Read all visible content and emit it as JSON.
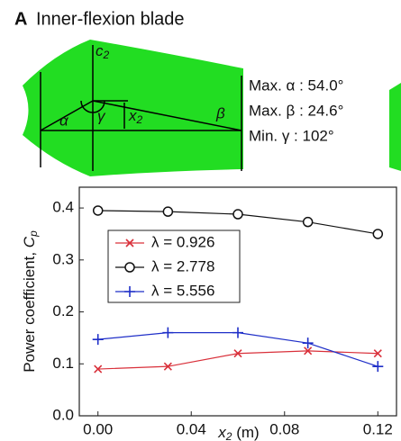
{
  "panel": {
    "letter": "A",
    "title": "Inner-flexion blade"
  },
  "diagram": {
    "c_label": [
      "c",
      "2"
    ],
    "x_label": [
      "x",
      "2"
    ],
    "alpha": "α",
    "beta": "β",
    "gamma": "γ",
    "stats": [
      "Max. α : 54.0°",
      "Max. β : 24.6°",
      "Min. γ : 102°"
    ]
  },
  "chart_data": {
    "type": "line",
    "xlabel": [
      "x",
      "2",
      " (m)"
    ],
    "ylabel": [
      "Power coefficient, ",
      "C",
      "p"
    ],
    "x": [
      0,
      0.03,
      0.06,
      0.09,
      0.12
    ],
    "series": [
      {
        "name": "λ = 0.926",
        "color": "#d9303a",
        "marker": "x",
        "values": [
          0.09,
          0.095,
          0.12,
          0.125,
          0.12
        ]
      },
      {
        "name": "λ = 2.778",
        "color": "#111111",
        "marker": "o",
        "values": [
          0.395,
          0.393,
          0.388,
          0.373,
          0.35
        ]
      },
      {
        "name": "λ = 5.556",
        "color": "#1f2fc8",
        "marker": "+",
        "values": [
          0.147,
          0.16,
          0.16,
          0.14,
          0.095
        ]
      }
    ],
    "xlim": [
      -0.008,
      0.128
    ],
    "ylim": [
      0,
      0.44
    ],
    "xticks": [
      {
        "value": 0,
        "label": "0.00"
      },
      0.04,
      0.08,
      0.12
    ],
    "yticks": [
      {
        "value": 0,
        "label": "0.0"
      },
      0.1,
      0.2,
      0.3,
      0.4
    ]
  }
}
